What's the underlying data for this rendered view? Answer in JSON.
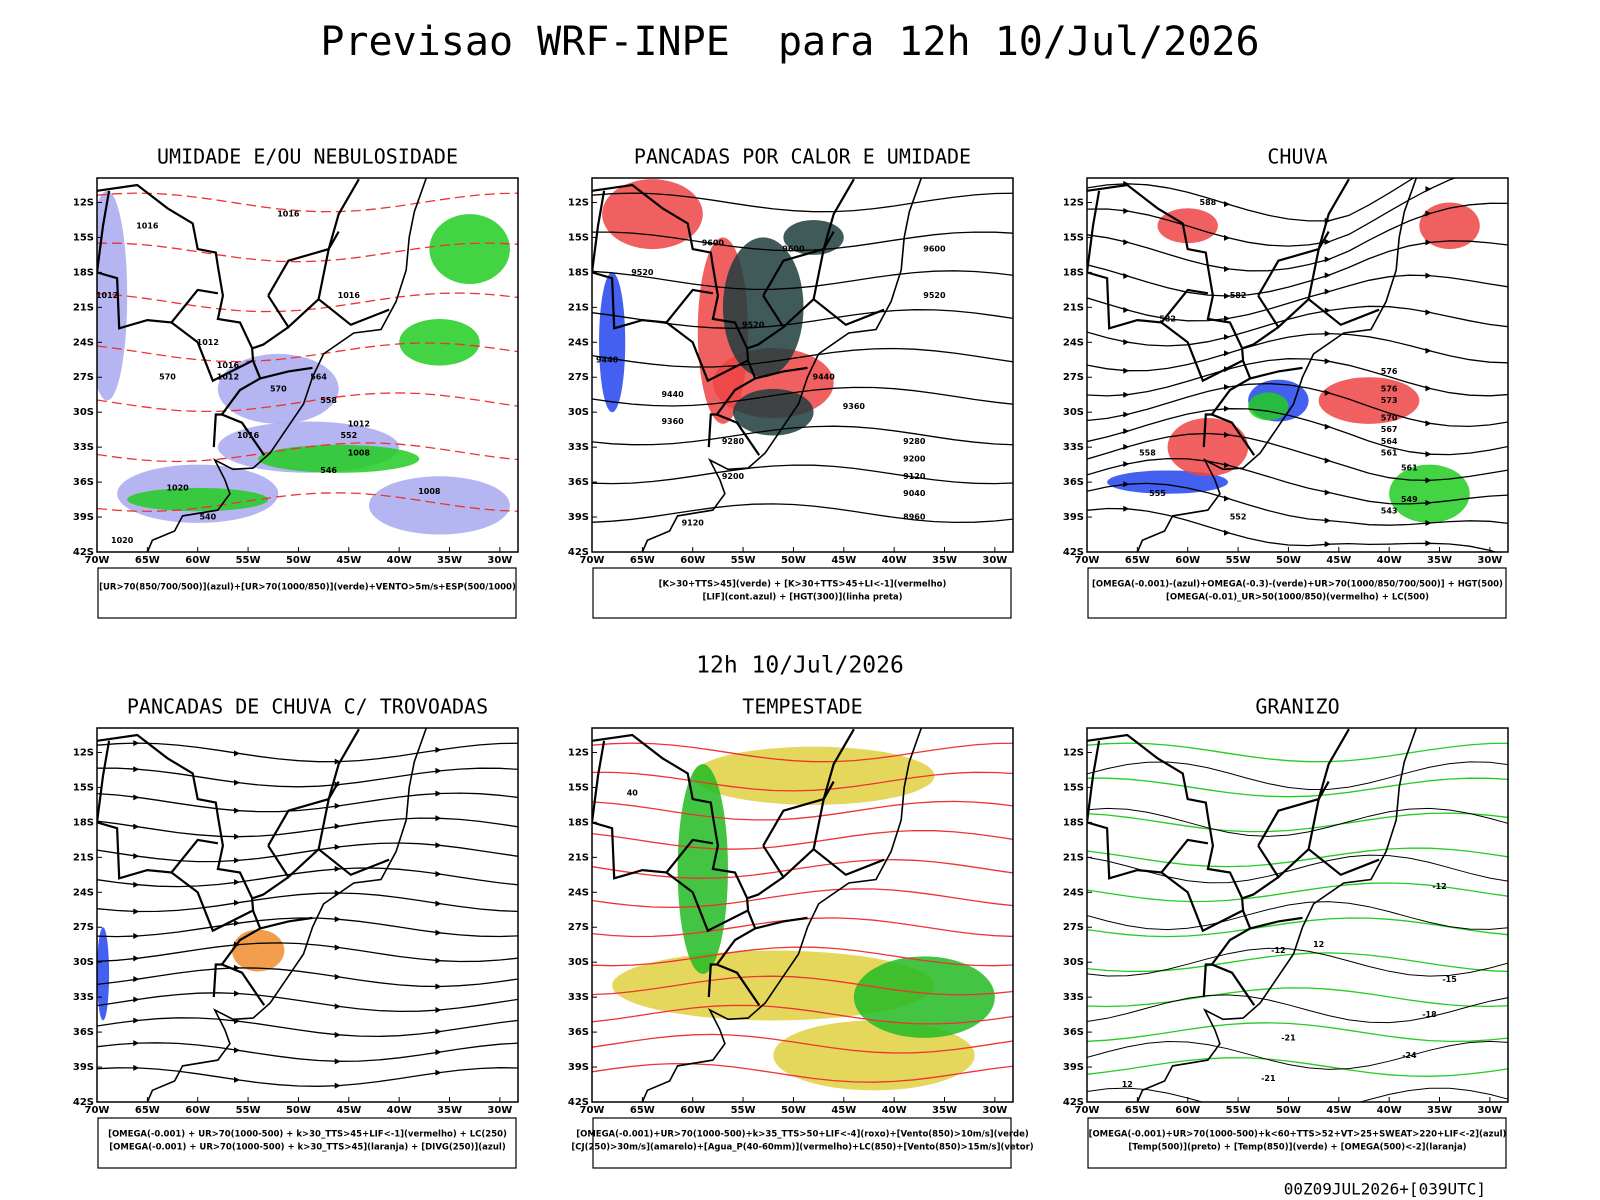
{
  "title": "Previsao WRF-INPE  para 12h 10/Jul/2026",
  "subtitle": "12h 10/Jul/2026",
  "footer": "00Z09JUL2026+[039UTC]",
  "lat_ticks": [
    "12S",
    "15S",
    "18S",
    "21S",
    "24S",
    "27S",
    "30S",
    "33S",
    "36S",
    "39S",
    "42S"
  ],
  "lon_ticks": [
    "70W",
    "65W",
    "60W",
    "55W",
    "50W",
    "45W",
    "40W",
    "35W",
    "30W"
  ],
  "panels": [
    {
      "title": "UMIDADE E/OU NEBULOSIDADE",
      "legend": [
        "[UR>70(850/700/500)](azul)+[UR>70(1000/850)](verde)+VENTO>5m/s+ESP(500/1000)"
      ],
      "labels": [
        "1016",
        "1016",
        "1012",
        "1016",
        "1016",
        "1012",
        "1012",
        "1016",
        "1012",
        "1008",
        "1020",
        "1008",
        "1020",
        "570",
        "570",
        "564",
        "558",
        "552",
        "546",
        "540"
      ]
    },
    {
      "title": "PANCADAS POR CALOR E UMIDADE",
      "legend": [
        "[K>30+TTS>45](verde) + [K>30+TTS>45+LI<-1](vermelho)",
        "[LIF](cont.azul) + [HGT(300)](linha preta)"
      ],
      "labels": [
        "9600",
        "9520",
        "9600",
        "9600",
        "9520",
        "9520",
        "9440",
        "9440",
        "9440",
        "9360",
        "9360",
        "9280",
        "9280",
        "9200",
        "9200",
        "9120",
        "9040",
        "8960",
        "9120"
      ]
    },
    {
      "title": "CHUVA",
      "legend": [
        "[OMEGA(-0.001)-(azul)+OMEGA(-0.3)-(verde)+UR>70(1000/850/700/500)] + HGT(500)",
        "[OMEGA(-0.01)_UR>50(1000/850)(vermelho) + LC(500)"
      ],
      "labels": [
        "588",
        "582",
        "582",
        "576",
        "576",
        "573",
        "570",
        "567",
        "564",
        "561",
        "558",
        "561",
        "555",
        "552",
        "549",
        "543"
      ]
    },
    {
      "title": "PANCADAS DE CHUVA C/ TROVOADAS",
      "legend": [
        "[OMEGA(-0.001) + UR>70(1000-500) + k>30_TTS>45+LIF<-1](vermelho) + LC(250)",
        "[OMEGA(-0.001) + UR>70(1000-500) + k>30_TTS>45](laranja) + [DIVG(250)](azul)"
      ],
      "labels": []
    },
    {
      "title": "TEMPESTADE",
      "legend": [
        "[OMEGA(-0.001)+UR>70(1000-500)+k>35_TTS>50+LIF<-4](roxo)+[Vento(850)>10m/s](verde)",
        "[CJ(250)>30m/s](amarelo)+[Agua_P(40-60mm)](vermelho)+LC(850)+[Vento(850)>15m/s](vetor)"
      ],
      "labels": [
        "40"
      ]
    },
    {
      "title": "GRANIZO",
      "legend": [
        "[OMEGA(-0.001)+UR>70(1000-500)+k<60+TTS>52+VT>25+SWEAT>220+LIF<-2](azul)",
        "[Temp(500)](preto) + [Temp(850)](verde) + [OMEGA(500)<-2](laranja)"
      ],
      "labels": [
        "-12",
        "12",
        "-12",
        "-15",
        "-18",
        "-21",
        "-24",
        "-21",
        "12"
      ]
    }
  ]
}
